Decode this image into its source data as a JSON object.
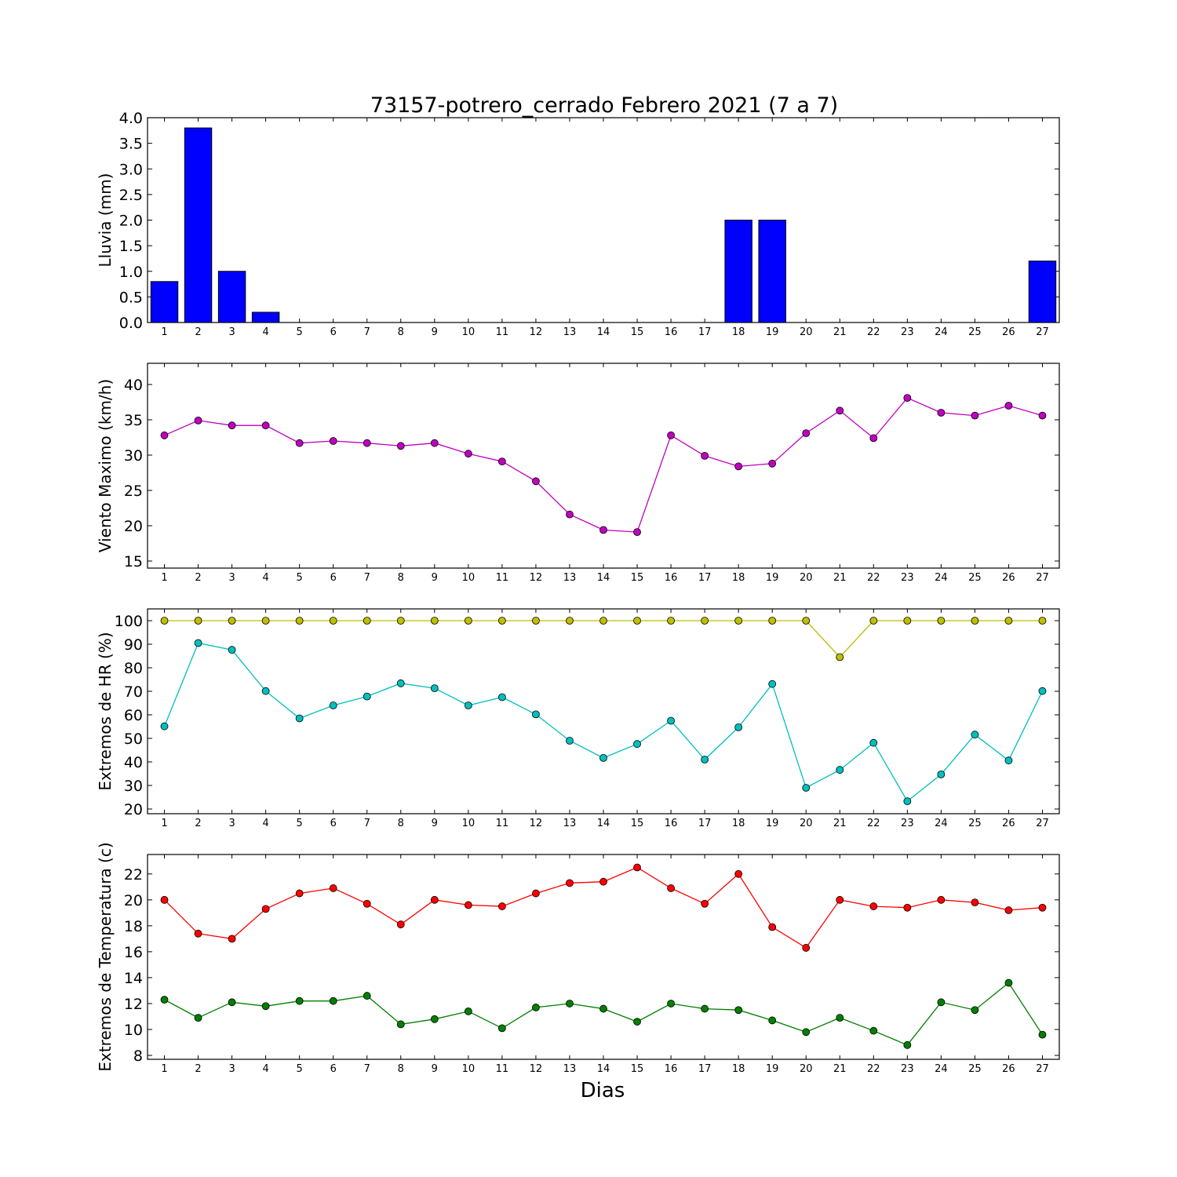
{
  "title": "73157-potrero_cerrado Febrero 2021  (7 a 7)",
  "xlabel": "Dias",
  "chart_data": [
    {
      "type": "bar",
      "ylabel": "Lluvia (mm)",
      "ylim": [
        0,
        4.0
      ],
      "yticks": [
        "0.0",
        "0.5",
        "1.0",
        "1.5",
        "2.0",
        "2.5",
        "3.0",
        "3.5",
        "4.0"
      ],
      "xlim": [
        0.5,
        27.5
      ],
      "categories": [
        "1",
        "2",
        "3",
        "4",
        "5",
        "6",
        "7",
        "8",
        "9",
        "10",
        "11",
        "12",
        "13",
        "14",
        "15",
        "16",
        "17",
        "18",
        "19",
        "20",
        "21",
        "22",
        "23",
        "24",
        "25",
        "26",
        "27"
      ],
      "series": [
        {
          "values": [
            0.8,
            3.8,
            1.0,
            0.2,
            0,
            0,
            0,
            0,
            0,
            0,
            0,
            0,
            0,
            0,
            0,
            0,
            0,
            2.0,
            2.0,
            0,
            0,
            0,
            0,
            0,
            0,
            0,
            1.2
          ],
          "color": "#0000ff"
        }
      ]
    },
    {
      "type": "line",
      "ylabel": "Viento Maximo (km/h)",
      "ylim": [
        14,
        43
      ],
      "yticks": [
        "15",
        "20",
        "25",
        "30",
        "35",
        "40"
      ],
      "xlim": [
        0.5,
        27.5
      ],
      "categories": [
        "1",
        "2",
        "3",
        "4",
        "5",
        "6",
        "7",
        "8",
        "9",
        "10",
        "11",
        "12",
        "13",
        "14",
        "15",
        "16",
        "17",
        "18",
        "19",
        "20",
        "21",
        "22",
        "23",
        "24",
        "25",
        "26",
        "27"
      ],
      "series": [
        {
          "values": [
            32.8,
            34.9,
            34.2,
            34.2,
            31.7,
            32.0,
            31.7,
            31.3,
            31.7,
            30.2,
            29.1,
            26.3,
            21.6,
            19.4,
            19.1,
            32.8,
            29.9,
            28.4,
            28.8,
            33.1,
            36.3,
            32.4,
            38.1,
            36.0,
            35.6,
            37.0,
            35.6
          ],
          "color": "#bf00bf"
        }
      ]
    },
    {
      "type": "line",
      "ylabel": "Extremos de HR (%)",
      "ylim": [
        18,
        105
      ],
      "yticks": [
        "20",
        "30",
        "40",
        "50",
        "60",
        "70",
        "80",
        "90",
        "100"
      ],
      "xlim": [
        0.5,
        27.5
      ],
      "categories": [
        "1",
        "2",
        "3",
        "4",
        "5",
        "6",
        "7",
        "8",
        "9",
        "10",
        "11",
        "12",
        "13",
        "14",
        "15",
        "16",
        "17",
        "18",
        "19",
        "20",
        "21",
        "22",
        "23",
        "24",
        "25",
        "26",
        "27"
      ],
      "series": [
        {
          "values": [
            100,
            100,
            100,
            100,
            100,
            100,
            100,
            100,
            100,
            100,
            100,
            100,
            100,
            100,
            100,
            100,
            100,
            100,
            100,
            100,
            84.5,
            100,
            100,
            100,
            100,
            100,
            100
          ],
          "color": "#bfbf00"
        },
        {
          "values": [
            55.1,
            90.5,
            87.6,
            70.1,
            58.5,
            64.0,
            67.8,
            73.4,
            71.3,
            64.0,
            67.5,
            60.2,
            49.0,
            41.7,
            47.6,
            57.5,
            41.0,
            54.7,
            73.1,
            29.0,
            36.6,
            48.1,
            23.3,
            34.7,
            51.6,
            40.6,
            70.1
          ],
          "color": "#00bfbf"
        }
      ]
    },
    {
      "type": "line",
      "ylabel": "Extremos de Temperatura (c)",
      "ylim": [
        7.7,
        23.5
      ],
      "yticks": [
        "8",
        "10",
        "12",
        "14",
        "16",
        "18",
        "20",
        "22"
      ],
      "xlim": [
        0.5,
        27.5
      ],
      "categories": [
        "1",
        "2",
        "3",
        "4",
        "5",
        "6",
        "7",
        "8",
        "9",
        "10",
        "11",
        "12",
        "13",
        "14",
        "15",
        "16",
        "17",
        "18",
        "19",
        "20",
        "21",
        "22",
        "23",
        "24",
        "25",
        "26",
        "27"
      ],
      "series": [
        {
          "values": [
            20.0,
            17.4,
            17.0,
            19.3,
            20.5,
            20.9,
            19.7,
            18.1,
            20.0,
            19.6,
            19.5,
            20.5,
            21.3,
            21.4,
            22.5,
            20.9,
            19.7,
            22.0,
            17.9,
            16.3,
            20.0,
            19.5,
            19.4,
            20.0,
            19.8,
            19.2,
            19.4
          ],
          "color": "#ff0000"
        },
        {
          "values": [
            12.3,
            10.9,
            12.1,
            11.8,
            12.2,
            12.2,
            12.6,
            10.4,
            10.8,
            11.4,
            10.1,
            11.7,
            12.0,
            11.6,
            10.6,
            12.0,
            11.6,
            11.5,
            10.7,
            9.8,
            10.9,
            9.9,
            8.8,
            12.1,
            11.5,
            13.6,
            9.6
          ],
          "color": "#007f00"
        }
      ]
    }
  ]
}
